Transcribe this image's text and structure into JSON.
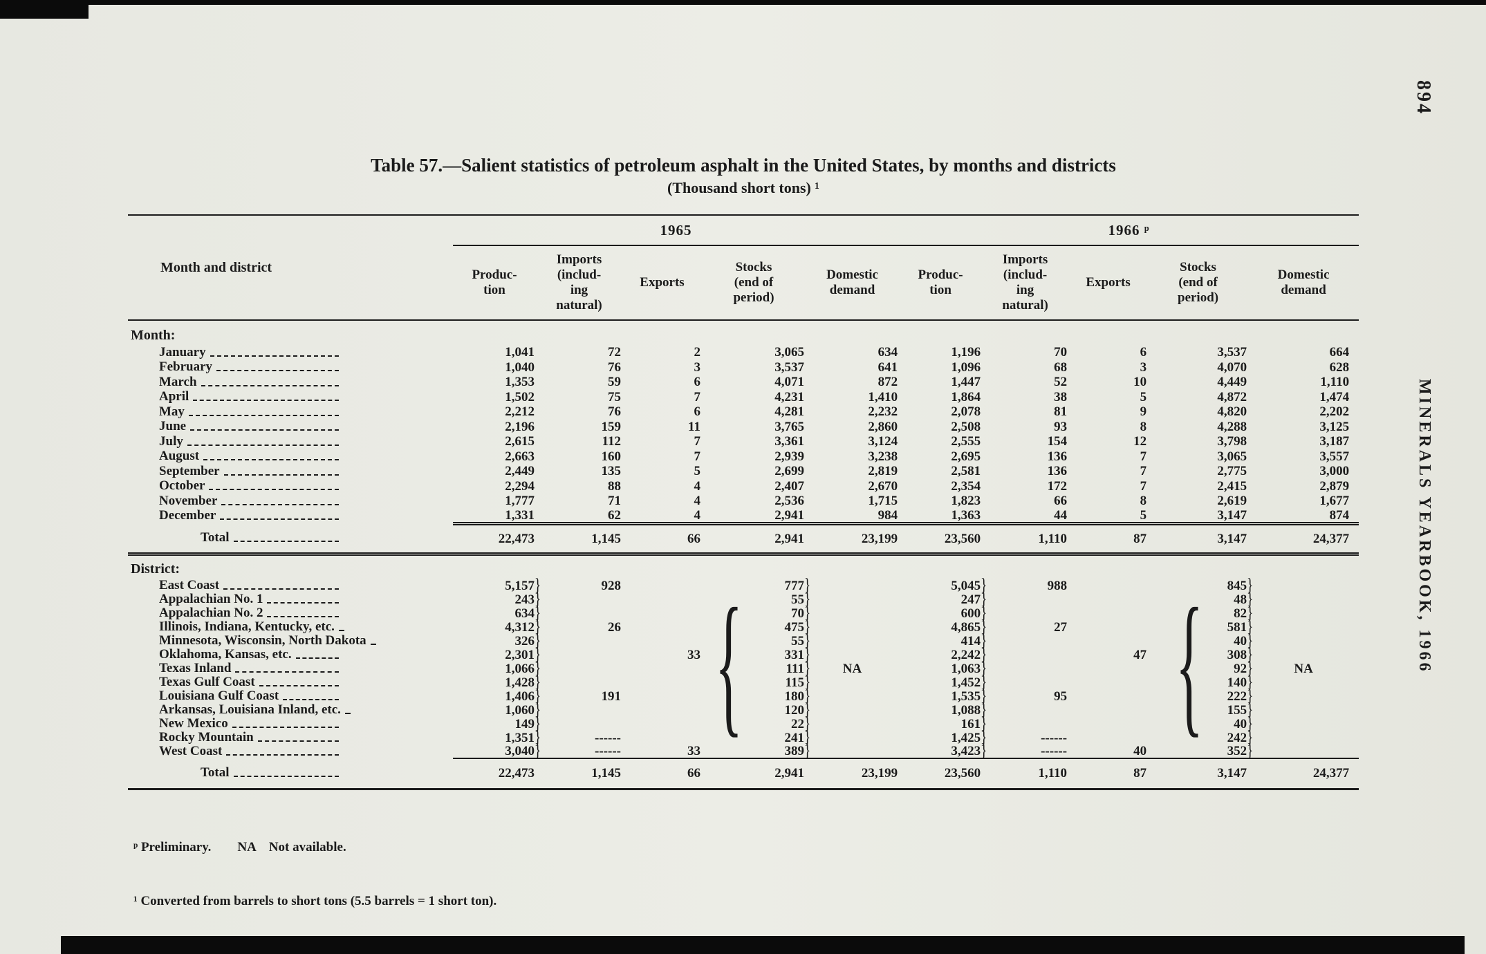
{
  "page": {
    "number": "894",
    "running_title": "MINERALS YEARBOOK, 1966"
  },
  "colors": {
    "paper": "#eaebe4",
    "ink": "#1b1b1b"
  },
  "title": "Table 57.—Salient statistics of petroleum asphalt in the United States, by months and districts",
  "subtitle": "(Thousand short tons) ¹",
  "header": {
    "stub": "Month and district",
    "groups": [
      "1965",
      "1966 ᵖ"
    ],
    "columns": [
      "Produc-\ntion",
      "Imports\n(includ-\ning\nnatural)",
      "Exports",
      "Stocks\n(end of\nperiod)",
      "Domestic\ndemand"
    ]
  },
  "braces": {
    "left": "{"
  },
  "sections": [
    {
      "heading": "Month:",
      "rows": [
        {
          "label": "January",
          "values": [
            "1,041",
            "72",
            "2",
            "3,065",
            "634",
            "1,196",
            "70",
            "6",
            "3,537",
            "664"
          ]
        },
        {
          "label": "February",
          "values": [
            "1,040",
            "76",
            "3",
            "3,537",
            "641",
            "1,096",
            "68",
            "3",
            "4,070",
            "628"
          ]
        },
        {
          "label": "March",
          "values": [
            "1,353",
            "59",
            "6",
            "4,071",
            "872",
            "1,447",
            "52",
            "10",
            "4,449",
            "1,110"
          ]
        },
        {
          "label": "April",
          "values": [
            "1,502",
            "75",
            "7",
            "4,231",
            "1,410",
            "1,864",
            "38",
            "5",
            "4,872",
            "1,474"
          ]
        },
        {
          "label": "May",
          "values": [
            "2,212",
            "76",
            "6",
            "4,281",
            "2,232",
            "2,078",
            "81",
            "9",
            "4,820",
            "2,202"
          ]
        },
        {
          "label": "June",
          "values": [
            "2,196",
            "159",
            "11",
            "3,765",
            "2,860",
            "2,508",
            "93",
            "8",
            "4,288",
            "3,125"
          ]
        },
        {
          "label": "July",
          "values": [
            "2,615",
            "112",
            "7",
            "3,361",
            "3,124",
            "2,555",
            "154",
            "12",
            "3,798",
            "3,187"
          ]
        },
        {
          "label": "August",
          "values": [
            "2,663",
            "160",
            "7",
            "2,939",
            "3,238",
            "2,695",
            "136",
            "7",
            "3,065",
            "3,557"
          ]
        },
        {
          "label": "September",
          "values": [
            "2,449",
            "135",
            "5",
            "2,699",
            "2,819",
            "2,581",
            "136",
            "7",
            "2,775",
            "3,000"
          ]
        },
        {
          "label": "October",
          "values": [
            "2,294",
            "88",
            "4",
            "2,407",
            "2,670",
            "2,354",
            "172",
            "7",
            "2,415",
            "2,879"
          ]
        },
        {
          "label": "November",
          "values": [
            "1,777",
            "71",
            "4",
            "2,536",
            "1,715",
            "1,823",
            "66",
            "8",
            "2,619",
            "1,677"
          ]
        },
        {
          "label": "December",
          "values": [
            "1,331",
            "62",
            "4",
            "2,941",
            "984",
            "1,363",
            "44",
            "5",
            "3,147",
            "874"
          ]
        }
      ],
      "total": {
        "label": "Total",
        "values": [
          "22,473",
          "1,145",
          "66",
          "2,941",
          "23,199",
          "23,560",
          "1,110",
          "87",
          "3,147",
          "24,377"
        ]
      }
    },
    {
      "heading": "District:",
      "rows": [
        {
          "label": "East Coast",
          "values": [
            "5,157}",
            "928",
            "",
            "777}",
            "",
            "5,045}",
            "988",
            "",
            "845}",
            ""
          ]
        },
        {
          "label": "Appalachian No. 1",
          "values": [
            "243}",
            "",
            "",
            "55}",
            "",
            "247}",
            "",
            "",
            "48}",
            ""
          ]
        },
        {
          "label": "Appalachian No. 2",
          "values": [
            "634}",
            "",
            "",
            "70}",
            "",
            "600}",
            "",
            "",
            "82}",
            ""
          ]
        },
        {
          "label": "Illinois, Indiana, Kentucky, etc.",
          "values": [
            "4,312}",
            "26",
            "",
            "475}",
            "",
            "4,865}",
            "27",
            "",
            "581}",
            ""
          ]
        },
        {
          "label": "Minnesota, Wisconsin, North Dakota",
          "values": [
            "326}",
            "",
            "",
            "55}",
            "",
            "414}",
            "",
            "",
            "40}",
            ""
          ]
        },
        {
          "label": "Oklahoma, Kansas, etc.",
          "values": [
            "2,301}",
            "",
            "33",
            "331}",
            "",
            "2,242}",
            "",
            "47",
            "308}",
            ""
          ]
        },
        {
          "label": "Texas Inland",
          "values": [
            "1,066}",
            "",
            "",
            "111}",
            "NA",
            "1,063}",
            "",
            "",
            "92}",
            "NA"
          ]
        },
        {
          "label": "Texas Gulf Coast",
          "values": [
            "1,428}",
            "",
            "",
            "115}",
            "",
            "1,452}",
            "",
            "",
            "140}",
            ""
          ]
        },
        {
          "label": "Louisiana Gulf Coast",
          "values": [
            "1,406}",
            "191",
            "",
            "180}",
            "",
            "1,535}",
            "95",
            "",
            "222}",
            ""
          ]
        },
        {
          "label": "Arkansas, Louisiana Inland, etc.",
          "values": [
            "1,060}",
            "",
            "",
            "120}",
            "",
            "1,088}",
            "",
            "",
            "155}",
            ""
          ]
        },
        {
          "label": "New Mexico",
          "values": [
            "149}",
            "",
            "",
            "22}",
            "",
            "161}",
            "",
            "",
            "40}",
            ""
          ]
        },
        {
          "label": "Rocky Mountain",
          "values": [
            "1,351}",
            "------",
            "",
            "241}",
            "",
            "1,425}",
            "------",
            "",
            "242}",
            ""
          ]
        },
        {
          "label": "West Coast",
          "values": [
            "3,040}",
            "------",
            "33",
            "389}",
            "",
            "3,423}",
            "------",
            "40",
            "352}",
            ""
          ]
        }
      ],
      "total": {
        "label": "Total",
        "values": [
          "22,473",
          "1,145",
          "66",
          "2,941",
          "23,199",
          "23,560",
          "1,110",
          "87",
          "3,147",
          "24,377"
        ]
      }
    }
  ],
  "footnotes": [
    "ᵖ Preliminary.        NA    Not available.",
    "¹ Converted from barrels to short tons (5.5 barrels = 1 short ton)."
  ]
}
